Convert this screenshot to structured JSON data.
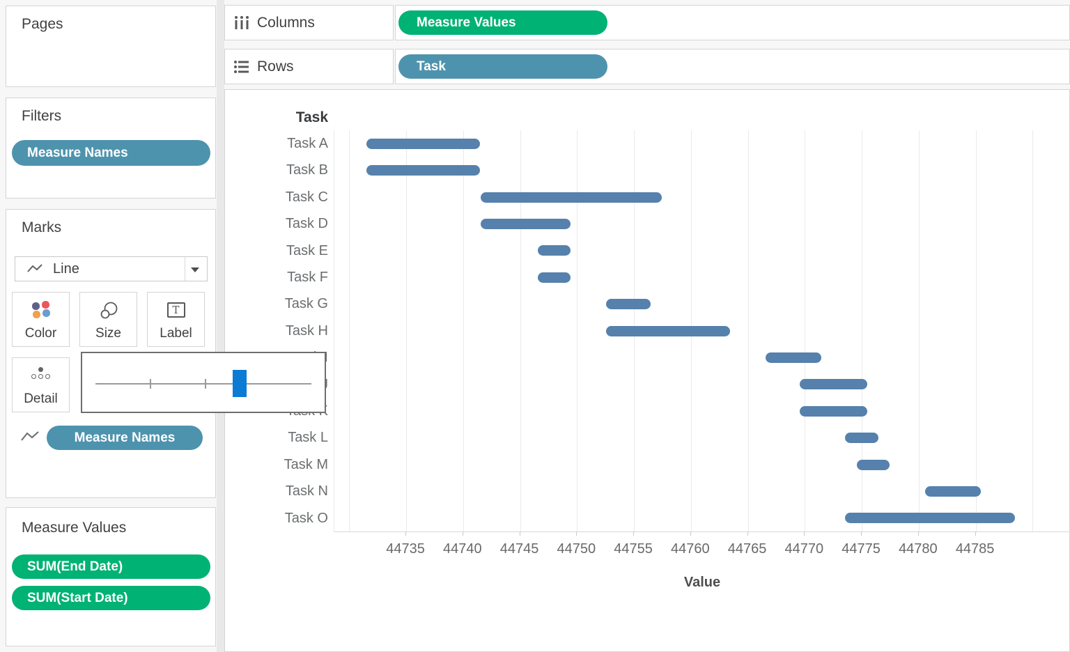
{
  "shelves": {
    "columns": {
      "label": "Columns",
      "pill": {
        "label": "Measure Values",
        "color": "#00b274"
      }
    },
    "rows": {
      "label": "Rows",
      "pill": {
        "label": "Task",
        "color": "#4e93ad"
      }
    }
  },
  "pages_card": {
    "title": "Pages"
  },
  "filters_card": {
    "title": "Filters",
    "pill": {
      "label": "Measure Names",
      "color": "#4e93ad"
    }
  },
  "marks_card": {
    "title": "Marks",
    "mark_type_selector": {
      "selected": "Line"
    },
    "buttons": {
      "color": "Color",
      "size": "Size",
      "label": "Label",
      "detail": "Detail"
    },
    "color_icon_dots": [
      "#60608a",
      "#e8575d",
      "#eda24d",
      "#6b9cd3"
    ],
    "size_popup": {
      "handle_color": "#0c7bd3",
      "handle_left_pct": 66.8,
      "tick_pcts": [
        25.2,
        50.6
      ]
    },
    "pill": {
      "label": "Measure Names",
      "color": "#4e93ad"
    }
  },
  "measure_values_card": {
    "title": "Measure Values",
    "pills": [
      {
        "label": "SUM(End Date)",
        "color": "#00b274"
      },
      {
        "label": "SUM(Start Date)",
        "color": "#00b274"
      }
    ]
  },
  "chart_data": {
    "type": "gantt",
    "header": "Task",
    "xlabel": "Value",
    "bar_color": "#5581ac",
    "x_axis": {
      "min": 44728.7,
      "max": 44793.4,
      "labeled_ticks": [
        44735,
        44740,
        44745,
        44750,
        44755,
        44760,
        44765,
        44770,
        44775,
        44780,
        44785
      ],
      "gridlines": [
        44730,
        44735,
        44740,
        44745,
        44750,
        44755,
        44760,
        44765,
        44770,
        44775,
        44780,
        44785,
        44790
      ]
    },
    "tasks": [
      {
        "name": "Task A",
        "start": 44732,
        "end": 44741
      },
      {
        "name": "Task B",
        "start": 44732,
        "end": 44741
      },
      {
        "name": "Task C",
        "start": 44742,
        "end": 44757
      },
      {
        "name": "Task D",
        "start": 44742,
        "end": 44749
      },
      {
        "name": "Task E",
        "start": 44747,
        "end": 44749
      },
      {
        "name": "Task F",
        "start": 44747,
        "end": 44749
      },
      {
        "name": "Task G",
        "start": 44753,
        "end": 44756
      },
      {
        "name": "Task H",
        "start": 44753,
        "end": 44763
      },
      {
        "name": "Task I",
        "start": 44767,
        "end": 44771
      },
      {
        "name": "Task J",
        "start": 44770,
        "end": 44775
      },
      {
        "name": "Task K",
        "start": 44770,
        "end": 44775
      },
      {
        "name": "Task L",
        "start": 44774,
        "end": 44776
      },
      {
        "name": "Task M",
        "start": 44775,
        "end": 44777
      },
      {
        "name": "Task N",
        "start": 44781,
        "end": 44785
      },
      {
        "name": "Task O",
        "start": 44774,
        "end": 44788
      }
    ]
  }
}
